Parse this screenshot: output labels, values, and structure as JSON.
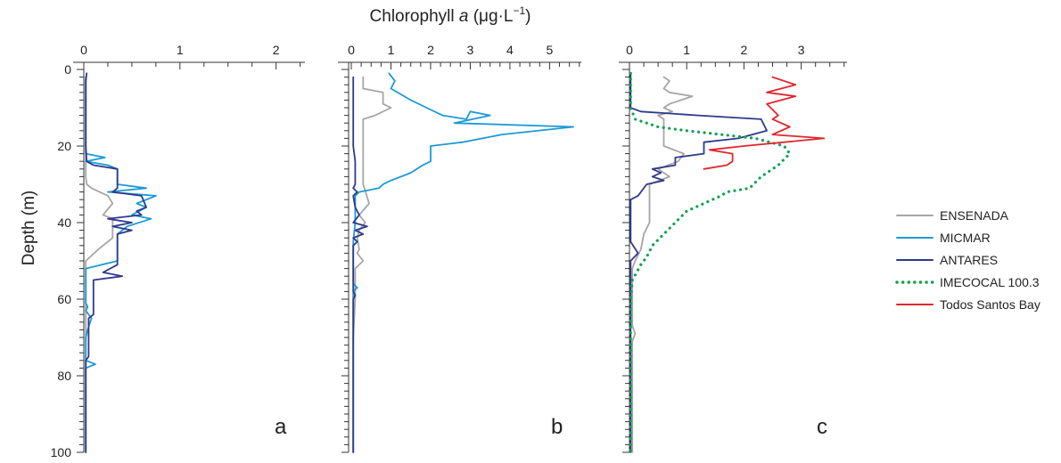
{
  "chart_data": {
    "type": "line",
    "x_title": {
      "main": "Chlorophyll ",
      "italic": "a",
      "unit": " (μg·L",
      "exp": "−1",
      "close": ")"
    },
    "ylabel": "Depth (m)",
    "y_axis": {
      "ylim": [
        0,
        100
      ],
      "inverted": true,
      "ticks": [
        0,
        20,
        40,
        60,
        80,
        100
      ],
      "minor_step": 2
    },
    "legend": {
      "placement": "right",
      "entries": [
        {
          "name": "ENSENADA",
          "color": "#a6a6a6",
          "style": "solid"
        },
        {
          "name": "MICMAR",
          "color": "#1b9ad6",
          "style": "solid"
        },
        {
          "name": "ANTARES",
          "color": "#2e3a8c",
          "style": "solid"
        },
        {
          "name": "IMECOCAL 100.3",
          "color": "#13a14f",
          "style": "dotted"
        },
        {
          "name": "Todos Santos Bay",
          "color": "#e2262d",
          "style": "solid"
        }
      ]
    },
    "panels": [
      {
        "label": "a",
        "xlim": [
          0,
          2.3
        ],
        "xticks": [
          0,
          1,
          2
        ],
        "series": [
          {
            "name": "ENSENADA",
            "points": [
              [
                0.02,
                2
              ],
              [
                0.02,
                10
              ],
              [
                0.02,
                20
              ],
              [
                0.02,
                28
              ],
              [
                0.03,
                30
              ],
              [
                0.08,
                31
              ],
              [
                0.25,
                33
              ],
              [
                0.3,
                35
              ],
              [
                0.2,
                38
              ],
              [
                0.3,
                39
              ],
              [
                0.3,
                41
              ],
              [
                0.3,
                44
              ],
              [
                0.15,
                47
              ],
              [
                0.02,
                50
              ],
              [
                0.02,
                52
              ],
              [
                0.02,
                60
              ],
              [
                0.02,
                80
              ],
              [
                0.02,
                100
              ]
            ]
          },
          {
            "name": "MICMAR",
            "points": [
              [
                0.02,
                2
              ],
              [
                0.02,
                10
              ],
              [
                0.02,
                22
              ],
              [
                0.22,
                23
              ],
              [
                0.02,
                24
              ],
              [
                0.25,
                25
              ],
              [
                0.35,
                26
              ],
              [
                0.35,
                30
              ],
              [
                0.65,
                31
              ],
              [
                0.25,
                32
              ],
              [
                0.75,
                33
              ],
              [
                0.55,
                35
              ],
              [
                0.65,
                36
              ],
              [
                0.5,
                38
              ],
              [
                0.7,
                39
              ],
              [
                0.45,
                41
              ],
              [
                0.35,
                43
              ],
              [
                0.35,
                50
              ],
              [
                0.02,
                52
              ],
              [
                0.02,
                55
              ],
              [
                0.02,
                61
              ],
              [
                0.04,
                62
              ],
              [
                0.02,
                63
              ],
              [
                0.08,
                65
              ],
              [
                0.04,
                68
              ],
              [
                0.02,
                70
              ],
              [
                0.02,
                75
              ],
              [
                0.02,
                76
              ],
              [
                0.12,
                77
              ],
              [
                0.02,
                78
              ],
              [
                0.02,
                100
              ]
            ]
          },
          {
            "name": "ANTARES",
            "points": [
              [
                0.03,
                1
              ],
              [
                0.02,
                3
              ],
              [
                0.02,
                10
              ],
              [
                0.02,
                20
              ],
              [
                0.03,
                24
              ],
              [
                0.1,
                25
              ],
              [
                0.35,
                26
              ],
              [
                0.35,
                31
              ],
              [
                0.3,
                32
              ],
              [
                0.6,
                33
              ],
              [
                0.65,
                36
              ],
              [
                0.55,
                37
              ],
              [
                0.6,
                38
              ],
              [
                0.25,
                39
              ],
              [
                0.5,
                40
              ],
              [
                0.3,
                41
              ],
              [
                0.5,
                42
              ],
              [
                0.35,
                43
              ],
              [
                0.35,
                51
              ],
              [
                0.2,
                53
              ],
              [
                0.4,
                54
              ],
              [
                0.1,
                55
              ],
              [
                0.1,
                64
              ],
              [
                0.05,
                65
              ],
              [
                0.05,
                75
              ],
              [
                0.02,
                76
              ],
              [
                0.02,
                100
              ]
            ]
          }
        ]
      },
      {
        "label": "b",
        "xlim": [
          0,
          5.8
        ],
        "xticks": [
          0,
          1,
          2,
          3,
          4,
          5
        ],
        "series": [
          {
            "name": "ENSENADA",
            "points": [
              [
                0.3,
                2
              ],
              [
                0.3,
                5
              ],
              [
                0.8,
                6
              ],
              [
                0.8,
                9
              ],
              [
                1.0,
                10
              ],
              [
                0.6,
                12
              ],
              [
                0.3,
                13
              ],
              [
                0.3,
                20
              ],
              [
                0.3,
                30
              ],
              [
                0.45,
                35
              ],
              [
                0.2,
                38
              ],
              [
                0.35,
                40
              ],
              [
                0.2,
                42
              ],
              [
                0.15,
                44
              ],
              [
                0.2,
                47
              ],
              [
                0.15,
                48
              ],
              [
                0.3,
                50
              ],
              [
                0.1,
                52
              ],
              [
                0.1,
                60
              ],
              [
                0.05,
                70
              ],
              [
                0.05,
                100
              ]
            ]
          },
          {
            "name": "MICMAR",
            "points": [
              [
                0.95,
                1
              ],
              [
                1.1,
                3
              ],
              [
                1.0,
                5
              ],
              [
                1.5,
                8
              ],
              [
                1.9,
                10
              ],
              [
                2.3,
                12
              ],
              [
                2.9,
                13
              ],
              [
                3.0,
                11
              ],
              [
                3.5,
                12
              ],
              [
                2.6,
                14
              ],
              [
                5.6,
                15
              ],
              [
                3.8,
                17
              ],
              [
                2.8,
                19
              ],
              [
                2.0,
                20
              ],
              [
                2.0,
                24
              ],
              [
                1.8,
                25
              ],
              [
                1.5,
                27
              ],
              [
                1.0,
                29
              ],
              [
                0.8,
                30
              ],
              [
                0.7,
                31
              ],
              [
                0.2,
                32
              ],
              [
                0.1,
                33
              ],
              [
                0.1,
                40
              ],
              [
                0.05,
                45
              ],
              [
                0.05,
                56
              ],
              [
                0.15,
                57
              ],
              [
                0.05,
                58
              ],
              [
                0.05,
                100
              ]
            ]
          },
          {
            "name": "ANTARES",
            "points": [
              [
                0.05,
                2
              ],
              [
                0.05,
                20
              ],
              [
                0.1,
                24
              ],
              [
                0.1,
                30
              ],
              [
                0.05,
                31
              ],
              [
                0.15,
                32
              ],
              [
                0.05,
                33
              ],
              [
                0.1,
                36
              ],
              [
                0.2,
                38
              ],
              [
                0.05,
                40
              ],
              [
                0.4,
                41
              ],
              [
                0.1,
                42
              ],
              [
                0.3,
                43
              ],
              [
                0.05,
                44
              ],
              [
                0.15,
                45
              ],
              [
                0.05,
                46
              ],
              [
                0.05,
                58
              ],
              [
                0.1,
                59
              ],
              [
                0.05,
                60
              ],
              [
                0.05,
                100
              ]
            ]
          }
        ]
      },
      {
        "label": "c",
        "xlim": [
          0,
          3.8
        ],
        "xticks": [
          0,
          1,
          2,
          3
        ],
        "series": [
          {
            "name": "ENSENADA",
            "points": [
              [
                0.6,
                2
              ],
              [
                0.7,
                3
              ],
              [
                0.6,
                5
              ],
              [
                0.7,
                6
              ],
              [
                1.1,
                7
              ],
              [
                0.9,
                8
              ],
              [
                0.7,
                9
              ],
              [
                0.6,
                10
              ],
              [
                0.75,
                11
              ],
              [
                0.5,
                12
              ],
              [
                0.6,
                13
              ],
              [
                0.6,
                20
              ],
              [
                0.95,
                22
              ],
              [
                0.85,
                24
              ],
              [
                0.5,
                26
              ],
              [
                0.7,
                28
              ],
              [
                0.35,
                30
              ],
              [
                0.35,
                40
              ],
              [
                0.25,
                43
              ],
              [
                0.2,
                47
              ],
              [
                0.1,
                50
              ],
              [
                0.05,
                52
              ],
              [
                0.05,
                67
              ],
              [
                0.1,
                69
              ],
              [
                0.05,
                71
              ],
              [
                0.05,
                100
              ]
            ]
          },
          {
            "name": "ANTARES",
            "points": [
              [
                0.02,
                1
              ],
              [
                0.02,
                5
              ],
              [
                0.02,
                10
              ],
              [
                0.2,
                11
              ],
              [
                1.2,
                12
              ],
              [
                2.3,
                13
              ],
              [
                2.4,
                16
              ],
              [
                1.9,
                18
              ],
              [
                1.3,
                19
              ],
              [
                1.3,
                22
              ],
              [
                0.8,
                23
              ],
              [
                0.8,
                25
              ],
              [
                0.4,
                26
              ],
              [
                0.55,
                27
              ],
              [
                0.4,
                28
              ],
              [
                0.6,
                29
              ],
              [
                0.3,
                30
              ],
              [
                0.15,
                33
              ],
              [
                0.02,
                34
              ],
              [
                0.02,
                45
              ],
              [
                0.15,
                48
              ],
              [
                0.02,
                50
              ],
              [
                0.02,
                100
              ]
            ]
          },
          {
            "name": "IMECOCAL 100.3",
            "points": [
              [
                0.02,
                1
              ],
              [
                0.02,
                10
              ],
              [
                0.1,
                13
              ],
              [
                0.5,
                15
              ],
              [
                1.0,
                16
              ],
              [
                1.6,
                17
              ],
              [
                2.2,
                18
              ],
              [
                2.7,
                20
              ],
              [
                2.8,
                22
              ],
              [
                2.6,
                25
              ],
              [
                2.3,
                28
              ],
              [
                2.1,
                31
              ],
              [
                1.7,
                32
              ],
              [
                1.6,
                33
              ],
              [
                1.3,
                35
              ],
              [
                1.0,
                37
              ],
              [
                0.8,
                40
              ],
              [
                0.6,
                43
              ],
              [
                0.4,
                46
              ],
              [
                0.3,
                49
              ],
              [
                0.2,
                51
              ],
              [
                0.05,
                55
              ],
              [
                0.02,
                60
              ],
              [
                0.02,
                100
              ]
            ]
          },
          {
            "name": "Todos Santos Bay",
            "points": [
              [
                2.5,
                2
              ],
              [
                2.9,
                4
              ],
              [
                2.4,
                6
              ],
              [
                2.9,
                7
              ],
              [
                2.4,
                9
              ],
              [
                2.6,
                12
              ],
              [
                2.5,
                13
              ],
              [
                2.8,
                15
              ],
              [
                2.5,
                17
              ],
              [
                3.4,
                18
              ],
              [
                2.0,
                20
              ],
              [
                1.4,
                21
              ],
              [
                1.8,
                22
              ],
              [
                1.8,
                24
              ],
              [
                1.7,
                25
              ],
              [
                1.3,
                26
              ]
            ]
          }
        ]
      }
    ]
  }
}
